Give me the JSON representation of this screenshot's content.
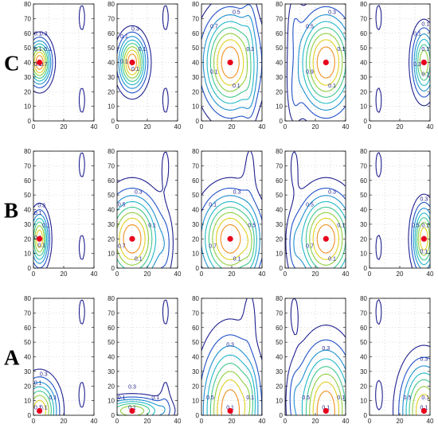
{
  "chart_data": {
    "type": "contour",
    "xlim": [
      0,
      40
    ],
    "ylim": [
      0,
      80
    ],
    "xticks": [
      0,
      20,
      40
    ],
    "yticks": [
      0,
      10,
      20,
      30,
      40,
      50,
      60,
      70,
      80
    ],
    "grid": "dotted",
    "contour_levels": [
      0.1,
      0.2,
      0.3,
      0.4,
      0.5,
      0.6,
      0.7,
      0.8,
      0.9
    ],
    "level_colors": [
      "#1f1f8f",
      "#2050c8",
      "#1e90d0",
      "#20b8c8",
      "#40c890",
      "#90d040",
      "#e0d020",
      "#f09020",
      "#e03020"
    ],
    "rows": [
      {
        "label": "C",
        "panels": [
          {
            "source": [
              4,
              40
            ],
            "spread": [
              5,
              10
            ],
            "peak": 0.9,
            "contour_labels": [
              "0.1",
              "0.3",
              "0.1",
              "0.1",
              "0.1",
              "0.7"
            ]
          },
          {
            "source": [
              10,
              40
            ],
            "spread": [
              6,
              12
            ],
            "peak": 0.9,
            "contour_labels": [
              "0.1",
              "0.3",
              "0.1",
              "0.1",
              "0.1"
            ]
          },
          {
            "source": [
              19,
              40
            ],
            "spread": [
              12,
              22
            ],
            "peak": 0.9,
            "contour_labels": [
              "0.3",
              "0.5",
              "0.7",
              "0.1",
              "0.1"
            ]
          },
          {
            "source": [
              27,
              40
            ],
            "spread": [
              12,
              22
            ],
            "peak": 0.9,
            "contour_labels": [
              "0.1",
              "0.3",
              "0.5",
              "0.9",
              "0.1"
            ]
          },
          {
            "source": [
              36,
              40
            ],
            "spread": [
              5,
              15
            ],
            "peak": 0.7,
            "contour_labels": [
              "0.1",
              "0.1",
              "0.1",
              "0.3",
              "0.1"
            ]
          }
        ]
      },
      {
        "label": "B",
        "panels": [
          {
            "source": [
              4,
              20
            ],
            "spread": [
              4,
              12
            ],
            "peak": 0.8,
            "contour_labels": [
              "0.1",
              "0.3",
              "0.1",
              "0.1",
              "0.1"
            ]
          },
          {
            "source": [
              10,
              20
            ],
            "spread": [
              12,
              20
            ],
            "peak": 0.9,
            "contour_labels": [
              "0.1",
              "0.3",
              "0.5",
              "0.7",
              "0.1"
            ]
          },
          {
            "source": [
              19,
              20
            ],
            "spread": [
              13,
              20
            ],
            "peak": 0.9,
            "contour_labels": [
              "0.5",
              "0.3",
              "0.1",
              "0.7",
              "0.1"
            ]
          },
          {
            "source": [
              27,
              20
            ],
            "spread": [
              12,
              20
            ],
            "peak": 0.9,
            "contour_labels": [
              "0.1",
              "0.3",
              "0.5",
              "0.7",
              "0.1"
            ]
          },
          {
            "source": [
              36,
              20
            ],
            "spread": [
              5,
              15
            ],
            "peak": 0.8,
            "contour_labels": [
              "0.1",
              "0.3",
              "0.5",
              "0.1"
            ]
          }
        ]
      },
      {
        "label": "A",
        "panels": [
          {
            "source": [
              4,
              3
            ],
            "spread": [
              8,
              14
            ],
            "peak": 0.8,
            "contour_labels": [
              "0.1",
              "0.3",
              "0.1",
              "0.1",
              "0.1"
            ]
          },
          {
            "source": [
              10,
              3
            ],
            "spread": [
              14,
              6
            ],
            "peak": 0.7,
            "contour_labels": [
              "0.1",
              "0.3",
              "0.1",
              "0.1"
            ]
          },
          {
            "source": [
              19,
              3
            ],
            "spread": [
              12,
              30
            ],
            "peak": 0.9,
            "contour_labels": [
              "0.1",
              "0.3",
              "0.5",
              "0.1"
            ]
          },
          {
            "source": [
              27,
              3
            ],
            "spread": [
              12,
              28
            ],
            "peak": 0.9,
            "contour_labels": [
              "0.1",
              "0.3",
              "0.5",
              "0.1"
            ]
          },
          {
            "source": [
              36,
              3
            ],
            "spread": [
              10,
              22
            ],
            "peak": 0.8,
            "contour_labels": [
              "0.1",
              "0.3",
              "0.5",
              "0.1"
            ]
          }
        ]
      }
    ]
  }
}
